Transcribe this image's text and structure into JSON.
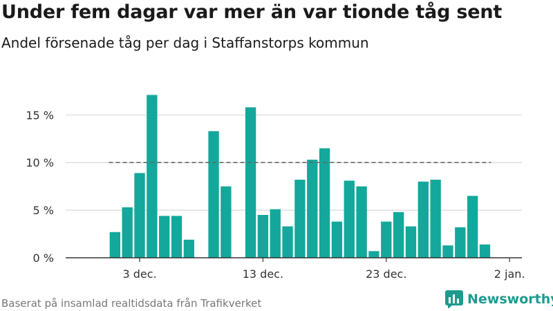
{
  "header": {
    "title": "Under fem dagar var mer än var tionde tåg sent",
    "subtitle": "Andel försenade tåg per dag i Staffanstorps kommun"
  },
  "footer": {
    "source": "Baserat på insamlad realtidsdata från Trafikverket",
    "brand": "Newsworthy"
  },
  "colors": {
    "bar": "#13a89b",
    "grid": "#d9d9d9",
    "axis": "#333333",
    "threshold": "#666666",
    "brand": "#1d9b8e"
  },
  "chart_data": {
    "type": "bar",
    "x": [
      "2021-12-01",
      "2021-12-02",
      "2021-12-03",
      "2021-12-04",
      "2021-12-05",
      "2021-12-06",
      "2021-12-07",
      "2021-12-08",
      "2021-12-09",
      "2021-12-10",
      "2021-12-11",
      "2021-12-12",
      "2021-12-13",
      "2021-12-14",
      "2021-12-15",
      "2021-12-16",
      "2021-12-17",
      "2021-12-18",
      "2021-12-19",
      "2021-12-20",
      "2021-12-21",
      "2021-12-22",
      "2021-12-23",
      "2021-12-24",
      "2021-12-25",
      "2021-12-26",
      "2021-12-27",
      "2021-12-28",
      "2021-12-29",
      "2021-12-30",
      "2021-12-31"
    ],
    "values": [
      2.7,
      5.3,
      8.9,
      17.1,
      4.4,
      4.4,
      1.9,
      null,
      13.3,
      7.5,
      null,
      15.8,
      4.5,
      5.1,
      3.3,
      8.2,
      10.3,
      11.5,
      3.8,
      8.1,
      7.5,
      0.7,
      3.8,
      4.8,
      3.3,
      8.0,
      8.2,
      1.3,
      3.2,
      6.5,
      1.4
    ],
    "xticks": [
      {
        "x": "2021-12-03",
        "label": "3 dec."
      },
      {
        "x": "2021-12-13",
        "label": "13 dec."
      },
      {
        "x": "2021-12-23",
        "label": "23 dec."
      },
      {
        "x": "2022-01-02",
        "label": "2 jan."
      }
    ],
    "yticks": [
      {
        "value": 0,
        "label": "0 %"
      },
      {
        "value": 5,
        "label": "5 %"
      },
      {
        "value": 10,
        "label": "10 %"
      },
      {
        "value": 15,
        "label": "15 %"
      }
    ],
    "ylim": [
      0,
      18
    ],
    "xlim": [
      "2021-11-27",
      "2022-01-03"
    ],
    "threshold": 10,
    "title": "Under fem dagar var mer än var tionde tåg sent",
    "subtitle": "Andel försenade tåg per dag i Staffanstorps kommun",
    "xlabel": "",
    "ylabel": "",
    "grid": true
  }
}
